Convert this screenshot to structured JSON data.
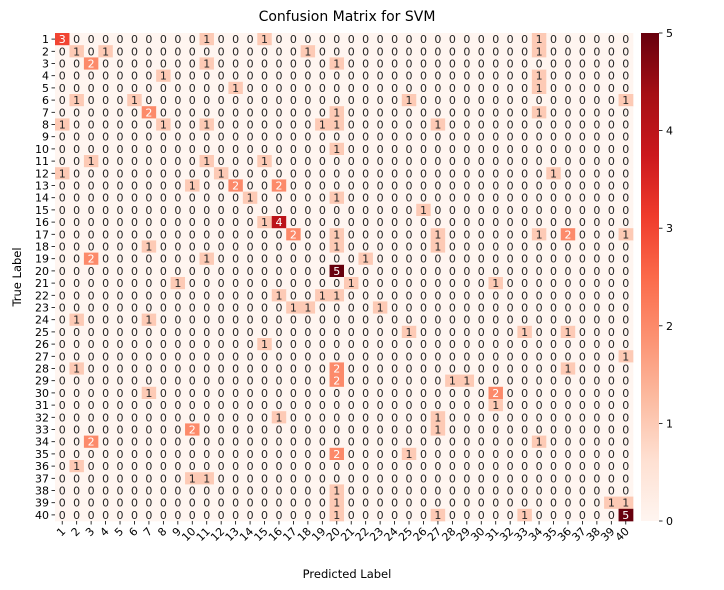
{
  "chart_data": {
    "type": "heatmap",
    "title": "Confusion Matrix for SVM",
    "xlabel": "Predicted Label",
    "ylabel": "True Label",
    "x_categories": [
      "1",
      "2",
      "3",
      "4",
      "5",
      "6",
      "7",
      "8",
      "9",
      "10",
      "11",
      "12",
      "13",
      "14",
      "15",
      "16",
      "17",
      "18",
      "19",
      "20",
      "21",
      "22",
      "23",
      "24",
      "25",
      "26",
      "27",
      "28",
      "29",
      "30",
      "31",
      "32",
      "33",
      "34",
      "35",
      "36",
      "37",
      "38",
      "39",
      "40"
    ],
    "y_categories": [
      "1",
      "2",
      "3",
      "4",
      "5",
      "6",
      "7",
      "8",
      "9",
      "10",
      "11",
      "12",
      "13",
      "14",
      "15",
      "16",
      "17",
      "18",
      "19",
      "20",
      "21",
      "22",
      "23",
      "24",
      "25",
      "26",
      "27",
      "28",
      "29",
      "30",
      "31",
      "32",
      "33",
      "34",
      "35",
      "36",
      "37",
      "38",
      "39",
      "40"
    ],
    "colormap": "Reds",
    "value_range": [
      0,
      5
    ],
    "colorbar_ticks": [
      0,
      1,
      2,
      3,
      4,
      5
    ],
    "cells": [
      {
        "r": 1,
        "c": 1,
        "v": 3
      },
      {
        "r": 1,
        "c": 11,
        "v": 1
      },
      {
        "r": 1,
        "c": 15,
        "v": 1
      },
      {
        "r": 1,
        "c": 34,
        "v": 1
      },
      {
        "r": 2,
        "c": 2,
        "v": 1
      },
      {
        "r": 2,
        "c": 4,
        "v": 1
      },
      {
        "r": 2,
        "c": 18,
        "v": 1
      },
      {
        "r": 2,
        "c": 34,
        "v": 1
      },
      {
        "r": 3,
        "c": 3,
        "v": 2
      },
      {
        "r": 3,
        "c": 11,
        "v": 1
      },
      {
        "r": 3,
        "c": 20,
        "v": 1
      },
      {
        "r": 4,
        "c": 8,
        "v": 1
      },
      {
        "r": 4,
        "c": 34,
        "v": 1
      },
      {
        "r": 5,
        "c": 13,
        "v": 1
      },
      {
        "r": 5,
        "c": 34,
        "v": 1
      },
      {
        "r": 6,
        "c": 2,
        "v": 1
      },
      {
        "r": 6,
        "c": 6,
        "v": 1
      },
      {
        "r": 6,
        "c": 25,
        "v": 1
      },
      {
        "r": 6,
        "c": 40,
        "v": 1
      },
      {
        "r": 7,
        "c": 7,
        "v": 2
      },
      {
        "r": 7,
        "c": 20,
        "v": 1
      },
      {
        "r": 7,
        "c": 34,
        "v": 1
      },
      {
        "r": 8,
        "c": 1,
        "v": 1
      },
      {
        "r": 8,
        "c": 8,
        "v": 1
      },
      {
        "r": 8,
        "c": 11,
        "v": 1
      },
      {
        "r": 8,
        "c": 19,
        "v": 1
      },
      {
        "r": 8,
        "c": 20,
        "v": 1
      },
      {
        "r": 8,
        "c": 27,
        "v": 1
      },
      {
        "r": 10,
        "c": 20,
        "v": 1
      },
      {
        "r": 11,
        "c": 3,
        "v": 1
      },
      {
        "r": 11,
        "c": 11,
        "v": 1
      },
      {
        "r": 11,
        "c": 15,
        "v": 1
      },
      {
        "r": 12,
        "c": 1,
        "v": 1
      },
      {
        "r": 12,
        "c": 12,
        "v": 1
      },
      {
        "r": 12,
        "c": 35,
        "v": 1
      },
      {
        "r": 13,
        "c": 10,
        "v": 1
      },
      {
        "r": 13,
        "c": 13,
        "v": 2
      },
      {
        "r": 13,
        "c": 16,
        "v": 2
      },
      {
        "r": 14,
        "c": 14,
        "v": 1
      },
      {
        "r": 14,
        "c": 20,
        "v": 1
      },
      {
        "r": 15,
        "c": 26,
        "v": 1
      },
      {
        "r": 16,
        "c": 15,
        "v": 1
      },
      {
        "r": 16,
        "c": 16,
        "v": 4
      },
      {
        "r": 17,
        "c": 17,
        "v": 2
      },
      {
        "r": 17,
        "c": 20,
        "v": 1
      },
      {
        "r": 17,
        "c": 27,
        "v": 1
      },
      {
        "r": 17,
        "c": 34,
        "v": 1
      },
      {
        "r": 17,
        "c": 36,
        "v": 2
      },
      {
        "r": 17,
        "c": 40,
        "v": 1
      },
      {
        "r": 18,
        "c": 7,
        "v": 1
      },
      {
        "r": 18,
        "c": 20,
        "v": 1
      },
      {
        "r": 18,
        "c": 27,
        "v": 1
      },
      {
        "r": 19,
        "c": 3,
        "v": 2
      },
      {
        "r": 19,
        "c": 11,
        "v": 1
      },
      {
        "r": 19,
        "c": 22,
        "v": 1
      },
      {
        "r": 20,
        "c": 20,
        "v": 5
      },
      {
        "r": 21,
        "c": 9,
        "v": 1
      },
      {
        "r": 21,
        "c": 21,
        "v": 1
      },
      {
        "r": 21,
        "c": 31,
        "v": 1
      },
      {
        "r": 22,
        "c": 16,
        "v": 1
      },
      {
        "r": 22,
        "c": 19,
        "v": 1
      },
      {
        "r": 22,
        "c": 20,
        "v": 1
      },
      {
        "r": 23,
        "c": 17,
        "v": 1
      },
      {
        "r": 23,
        "c": 18,
        "v": 1
      },
      {
        "r": 23,
        "c": 23,
        "v": 1
      },
      {
        "r": 24,
        "c": 2,
        "v": 1
      },
      {
        "r": 24,
        "c": 7,
        "v": 1
      },
      {
        "r": 25,
        "c": 25,
        "v": 1
      },
      {
        "r": 25,
        "c": 33,
        "v": 1
      },
      {
        "r": 25,
        "c": 36,
        "v": 1
      },
      {
        "r": 26,
        "c": 15,
        "v": 1
      },
      {
        "r": 27,
        "c": 40,
        "v": 1
      },
      {
        "r": 28,
        "c": 2,
        "v": 1
      },
      {
        "r": 28,
        "c": 20,
        "v": 2
      },
      {
        "r": 28,
        "c": 36,
        "v": 1
      },
      {
        "r": 29,
        "c": 20,
        "v": 2
      },
      {
        "r": 29,
        "c": 28,
        "v": 1
      },
      {
        "r": 29,
        "c": 29,
        "v": 1
      },
      {
        "r": 30,
        "c": 7,
        "v": 1
      },
      {
        "r": 30,
        "c": 31,
        "v": 2
      },
      {
        "r": 31,
        "c": 31,
        "v": 1
      },
      {
        "r": 32,
        "c": 16,
        "v": 1
      },
      {
        "r": 32,
        "c": 27,
        "v": 1
      },
      {
        "r": 33,
        "c": 10,
        "v": 2
      },
      {
        "r": 33,
        "c": 27,
        "v": 1
      },
      {
        "r": 34,
        "c": 3,
        "v": 2
      },
      {
        "r": 34,
        "c": 34,
        "v": 1
      },
      {
        "r": 35,
        "c": 20,
        "v": 2
      },
      {
        "r": 35,
        "c": 25,
        "v": 1
      },
      {
        "r": 36,
        "c": 2,
        "v": 1
      },
      {
        "r": 37,
        "c": 10,
        "v": 1
      },
      {
        "r": 37,
        "c": 11,
        "v": 1
      },
      {
        "r": 38,
        "c": 20,
        "v": 1
      },
      {
        "r": 39,
        "c": 20,
        "v": 1
      },
      {
        "r": 39,
        "c": 39,
        "v": 1
      },
      {
        "r": 39,
        "c": 40,
        "v": 1
      },
      {
        "r": 40,
        "c": 20,
        "v": 1
      },
      {
        "r": 40,
        "c": 27,
        "v": 1
      },
      {
        "r": 40,
        "c": 33,
        "v": 1
      },
      {
        "r": 40,
        "c": 40,
        "v": 5
      }
    ]
  }
}
